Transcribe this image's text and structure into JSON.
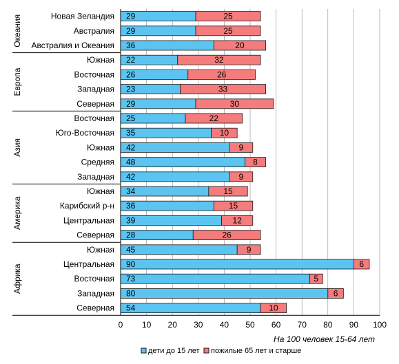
{
  "chart_data": {
    "type": "bar",
    "orientation": "horizontal",
    "stacked": true,
    "xlabel": "На 100 человек 15-64 лет",
    "xlim": [
      0,
      100
    ],
    "xticks": [
      0,
      10,
      20,
      30,
      40,
      50,
      60,
      70,
      80,
      90,
      100
    ],
    "grid": true,
    "legend_position": "bottom",
    "series": [
      {
        "name": "дети до 15 лет",
        "color": "#5bc4f1"
      },
      {
        "name": "пожилые 65 лет и старше",
        "color": "#f47c7c"
      }
    ],
    "groups": [
      {
        "name": "Океания",
        "rows": [
          {
            "label": "Новая Зеландия",
            "values": [
              29,
              25
            ]
          },
          {
            "label": "Австралия",
            "values": [
              29,
              25
            ]
          },
          {
            "label": "Австралия и Океания",
            "values": [
              36,
              20
            ]
          }
        ]
      },
      {
        "name": "Европа",
        "rows": [
          {
            "label": "Южная",
            "values": [
              22,
              32
            ]
          },
          {
            "label": "Восточная",
            "values": [
              26,
              26
            ]
          },
          {
            "label": "Западная",
            "values": [
              23,
              33
            ]
          },
          {
            "label": "Северная",
            "values": [
              29,
              30
            ]
          }
        ]
      },
      {
        "name": "Азия",
        "rows": [
          {
            "label": "Восточная",
            "values": [
              25,
              22
            ]
          },
          {
            "label": "Юго-Восточная",
            "values": [
              35,
              10
            ]
          },
          {
            "label": "Южная",
            "values": [
              42,
              9
            ]
          },
          {
            "label": "Средняя",
            "values": [
              48,
              8
            ]
          },
          {
            "label": "Западная",
            "values": [
              42,
              9
            ]
          }
        ]
      },
      {
        "name": "Америка",
        "rows": [
          {
            "label": "Южная",
            "values": [
              34,
              15
            ]
          },
          {
            "label": "Карибский р-н",
            "values": [
              36,
              15
            ]
          },
          {
            "label": "Центральная",
            "values": [
              39,
              12
            ]
          },
          {
            "label": "Северная",
            "values": [
              28,
              26
            ]
          }
        ]
      },
      {
        "name": "Африка",
        "rows": [
          {
            "label": "Южная",
            "values": [
              45,
              9
            ]
          },
          {
            "label": "Центральная",
            "values": [
              90,
              6
            ]
          },
          {
            "label": "Восточная",
            "values": [
              73,
              5
            ]
          },
          {
            "label": "Западная",
            "values": [
              80,
              6
            ]
          },
          {
            "label": "Северная",
            "values": [
              54,
              10
            ]
          }
        ]
      }
    ]
  }
}
